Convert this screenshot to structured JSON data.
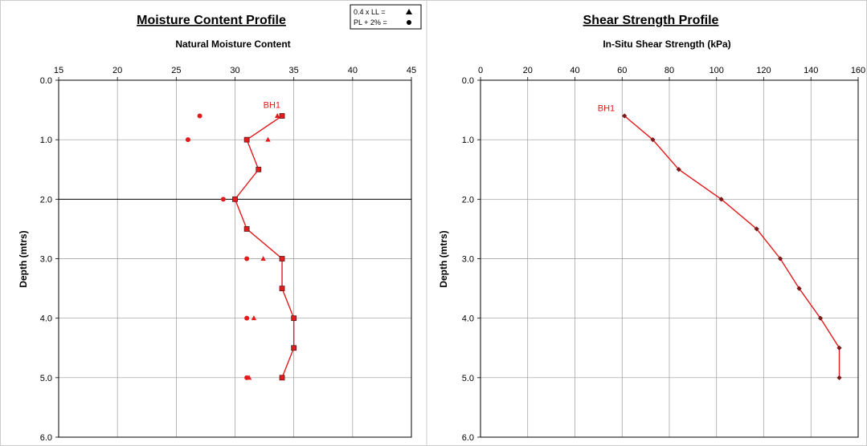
{
  "chart_data": [
    {
      "type": "line",
      "title": "Moisture Content Profile",
      "subtitle": "Natural Moisture Content",
      "ylabel": "Depth (mtrs)",
      "x_ticks": [
        15,
        20,
        25,
        30,
        35,
        40,
        45
      ],
      "y_ticks": [
        "0.0",
        "1.0",
        "2.0",
        "3.0",
        "4.0",
        "5.0",
        "6.0"
      ],
      "xlim": [
        15,
        45
      ],
      "ylim": [
        0,
        6
      ],
      "y_inverted": true,
      "x_axis_position": "top",
      "legend": {
        "placement": "top-right",
        "entries": [
          {
            "label": "0.4 x LL  =",
            "marker": "triangle"
          },
          {
            "label": "PL + 2%  =",
            "marker": "circle"
          }
        ]
      },
      "annotation": "BH1",
      "line_series": {
        "x": [
          34,
          31,
          32,
          30,
          31,
          34,
          34,
          35,
          35,
          34
        ],
        "depth": [
          0.6,
          1.0,
          1.5,
          2.0,
          2.5,
          3.0,
          3.5,
          4.0,
          4.5,
          5.0
        ]
      },
      "triangles_0_4LL": {
        "x": [
          33.6,
          32.8,
          32.4,
          31.6,
          31.2
        ],
        "depth": [
          0.6,
          1.0,
          3.0,
          4.0,
          5.0
        ]
      },
      "circles_PL_2": {
        "x": [
          27,
          26,
          29,
          31,
          31,
          31
        ],
        "depth": [
          0.6,
          1.0,
          2.0,
          3.0,
          4.0,
          5.0
        ]
      },
      "color": "#e41a1c"
    },
    {
      "type": "line",
      "title": "Shear Strength Profile",
      "subtitle": "In-Situ Shear Strength (kPa)",
      "ylabel": "Depth (mtrs)",
      "x_ticks": [
        0,
        20,
        40,
        60,
        80,
        100,
        120,
        140,
        160
      ],
      "y_ticks": [
        "0.0",
        "1.0",
        "2.0",
        "3.0",
        "4.0",
        "5.0",
        "6.0"
      ],
      "xlim": [
        0,
        160
      ],
      "ylim": [
        0,
        6
      ],
      "y_inverted": true,
      "x_axis_position": "top",
      "annotation": "BH1",
      "series": {
        "x": [
          61,
          73,
          84,
          102,
          117,
          127,
          135,
          144,
          152,
          152
        ],
        "depth": [
          0.6,
          1.0,
          1.5,
          2.0,
          2.5,
          3.0,
          3.5,
          4.0,
          4.5,
          5.0
        ]
      },
      "color": "#e41a1c"
    }
  ]
}
